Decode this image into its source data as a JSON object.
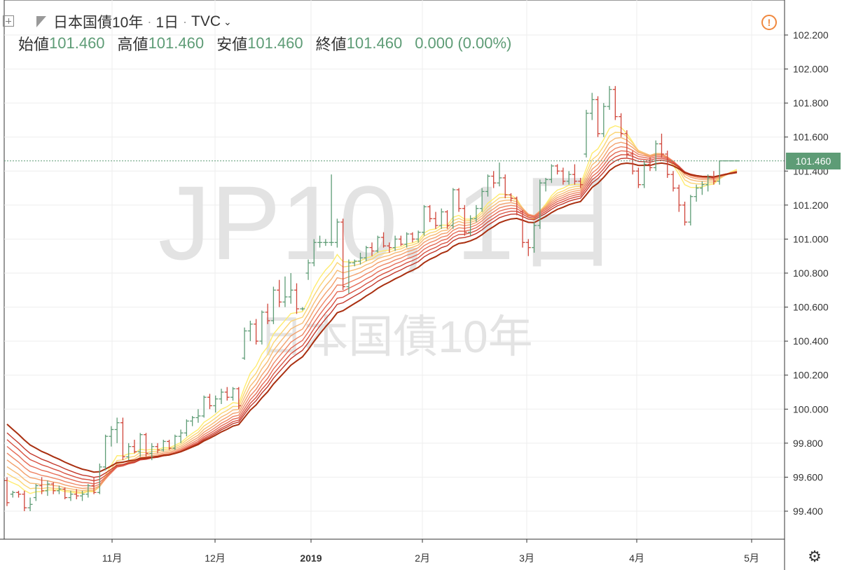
{
  "header": {
    "symbol_name": "日本国債10年",
    "interval": "1日",
    "source": "TVC",
    "open_label": "始値",
    "open_value": "101.460",
    "high_label": "高値",
    "high_value": "101.460",
    "low_label": "安値",
    "low_value": "101.460",
    "close_label": "終値",
    "close_value": "101.460",
    "change": "0.000 (0.00%)"
  },
  "watermark": {
    "line1": "JP10, 1日",
    "line2": "日本国債10年"
  },
  "last_price_label": "101.460",
  "colors": {
    "up": "#5e9c76",
    "down": "#d0453a",
    "ribbon": [
      "#ffec6e",
      "#fbd575",
      "#f7bb75",
      "#f3a06c",
      "#ee8564",
      "#e56a55",
      "#d75141",
      "#c3382b",
      "#a92f10"
    ]
  },
  "icons": [
    "expand-icon",
    "flag-icon",
    "chevron-down-icon",
    "warning-icon",
    "settings-icon"
  ],
  "chart_data": {
    "type": "ohlc",
    "y_ticks": [
      "102.200",
      "102.000",
      "101.800",
      "101.600",
      "101.400",
      "101.200",
      "101.000",
      "100.800",
      "100.600",
      "100.400",
      "100.200",
      "100.000",
      "99.800",
      "99.600",
      "99.400"
    ],
    "ylim": [
      99.25,
      102.35
    ],
    "x_ticks": [
      "11月",
      "12月",
      "2019",
      "2月",
      "3月",
      "4月",
      "5月"
    ],
    "last_price": 101.46,
    "bars": [
      [
        99.58,
        99.6,
        99.43,
        99.45
      ],
      [
        99.5,
        99.52,
        99.48,
        99.51
      ],
      [
        99.51,
        99.52,
        99.48,
        99.5
      ],
      [
        99.5,
        99.52,
        99.4,
        99.42
      ],
      [
        99.42,
        99.48,
        99.4,
        99.44
      ],
      [
        99.48,
        99.56,
        99.46,
        99.55
      ],
      [
        99.55,
        99.6,
        99.5,
        99.52
      ],
      [
        99.52,
        99.58,
        99.49,
        99.56
      ],
      [
        99.56,
        99.57,
        99.5,
        99.52
      ],
      [
        99.52,
        99.55,
        99.5,
        99.53
      ],
      [
        99.53,
        99.54,
        99.47,
        99.48
      ],
      [
        99.48,
        99.52,
        99.46,
        99.5
      ],
      [
        99.5,
        99.53,
        99.47,
        99.49
      ],
      [
        99.49,
        99.52,
        99.46,
        99.5
      ],
      [
        99.5,
        99.56,
        99.48,
        99.55
      ],
      [
        99.55,
        99.6,
        99.5,
        99.51
      ],
      [
        99.51,
        99.68,
        99.5,
        99.66
      ],
      [
        99.66,
        99.85,
        99.64,
        99.84
      ],
      [
        99.84,
        99.9,
        99.78,
        99.88
      ],
      [
        99.88,
        99.95,
        99.8,
        99.92
      ],
      [
        99.92,
        99.95,
        99.7,
        99.72
      ],
      [
        99.72,
        99.8,
        99.7,
        99.78
      ],
      [
        99.78,
        99.82,
        99.74,
        99.75
      ],
      [
        99.75,
        99.86,
        99.72,
        99.85
      ],
      [
        99.85,
        99.86,
        99.72,
        99.74
      ],
      [
        99.74,
        99.8,
        99.7,
        99.78
      ],
      [
        99.78,
        99.8,
        99.74,
        99.76
      ],
      [
        99.76,
        99.82,
        99.75,
        99.81
      ],
      [
        99.81,
        99.82,
        99.76,
        99.77
      ],
      [
        99.77,
        99.85,
        99.76,
        99.84
      ],
      [
        99.84,
        99.88,
        99.8,
        99.86
      ],
      [
        99.86,
        99.94,
        99.84,
        99.93
      ],
      [
        99.93,
        99.96,
        99.9,
        99.95
      ],
      [
        99.95,
        100.0,
        99.92,
        99.96
      ],
      [
        99.96,
        100.08,
        99.95,
        100.07
      ],
      [
        100.07,
        100.09,
        100.0,
        100.02
      ],
      [
        100.02,
        100.08,
        99.98,
        100.06
      ],
      [
        100.06,
        100.12,
        100.03,
        100.1
      ],
      [
        100.1,
        100.13,
        100.05,
        100.07
      ],
      [
        100.07,
        100.13,
        100.05,
        100.12
      ],
      [
        100.12,
        100.13,
        100.0,
        100.02
      ],
      [
        100.3,
        100.48,
        100.29,
        100.46
      ],
      [
        100.46,
        100.52,
        100.4,
        100.5
      ],
      [
        100.5,
        100.53,
        100.38,
        100.4
      ],
      [
        100.4,
        100.58,
        100.38,
        100.57
      ],
      [
        100.57,
        100.62,
        100.5,
        100.52
      ],
      [
        100.52,
        100.72,
        100.5,
        100.7
      ],
      [
        100.7,
        100.76,
        100.6,
        100.63
      ],
      [
        100.63,
        100.78,
        100.6,
        100.66
      ],
      [
        100.66,
        100.8,
        100.62,
        100.7
      ],
      [
        100.7,
        100.74,
        100.56,
        100.59
      ],
      [
        100.59,
        100.6,
        100.58,
        100.59
      ],
      [
        100.8,
        100.88,
        100.76,
        100.86
      ],
      [
        100.86,
        101.0,
        100.84,
        100.98
      ],
      [
        100.98,
        101.02,
        100.95,
        100.98
      ],
      [
        100.98,
        101.0,
        100.96,
        100.98
      ],
      [
        100.98,
        101.38,
        100.96,
        100.98
      ],
      [
        100.98,
        101.12,
        100.95,
        101.1
      ],
      [
        101.1,
        101.12,
        100.7,
        100.72
      ],
      [
        100.72,
        100.88,
        100.68,
        100.86
      ],
      [
        100.86,
        100.88,
        100.84,
        100.87
      ],
      [
        100.87,
        100.92,
        100.85,
        100.89
      ],
      [
        100.89,
        100.96,
        100.87,
        100.95
      ],
      [
        100.95,
        100.98,
        100.9,
        100.93
      ],
      [
        100.93,
        101.02,
        100.92,
        101.01
      ],
      [
        101.01,
        101.04,
        100.95,
        100.96
      ],
      [
        100.96,
        100.98,
        100.92,
        100.95
      ],
      [
        100.95,
        101.02,
        100.93,
        101.0
      ],
      [
        101.0,
        101.02,
        100.96,
        100.97
      ],
      [
        100.97,
        101.04,
        100.95,
        101.03
      ],
      [
        101.03,
        101.04,
        100.98,
        101.0
      ],
      [
        101.0,
        101.05,
        100.98,
        101.04
      ],
      [
        101.04,
        101.2,
        101.02,
        101.19
      ],
      [
        101.19,
        101.2,
        101.1,
        101.12
      ],
      [
        101.12,
        101.16,
        101.06,
        101.08
      ],
      [
        101.08,
        101.18,
        101.06,
        101.16
      ],
      [
        101.16,
        101.17,
        101.06,
        101.08
      ],
      [
        101.08,
        101.3,
        101.06,
        101.29
      ],
      [
        101.29,
        101.3,
        101.16,
        101.18
      ],
      [
        101.18,
        101.2,
        101.02,
        101.04
      ],
      [
        101.04,
        101.14,
        101.02,
        101.12
      ],
      [
        101.12,
        101.2,
        101.1,
        101.18
      ],
      [
        101.18,
        101.3,
        101.16,
        101.28
      ],
      [
        101.28,
        101.38,
        101.25,
        101.37
      ],
      [
        101.37,
        101.4,
        101.3,
        101.33
      ],
      [
        101.33,
        101.45,
        101.31,
        101.36
      ],
      [
        101.36,
        101.38,
        101.24,
        101.26
      ],
      [
        101.26,
        101.27,
        101.22,
        101.24
      ],
      [
        101.24,
        101.25,
        101.14,
        101.16
      ],
      [
        101.16,
        101.17,
        100.95,
        100.98
      ],
      [
        100.98,
        101.0,
        100.9,
        100.95
      ],
      [
        100.95,
        101.1,
        100.92,
        101.08
      ],
      [
        101.08,
        101.35,
        101.06,
        101.33
      ],
      [
        101.33,
        101.36,
        101.28,
        101.35
      ],
      [
        101.35,
        101.44,
        101.33,
        101.43
      ],
      [
        101.43,
        101.44,
        101.38,
        101.4
      ],
      [
        101.4,
        101.42,
        101.32,
        101.34
      ],
      [
        101.34,
        101.4,
        101.32,
        101.38
      ],
      [
        101.38,
        101.44,
        101.32,
        101.34
      ],
      [
        101.34,
        101.36,
        101.3,
        101.32
      ],
      [
        101.5,
        101.76,
        101.48,
        101.74
      ],
      [
        101.74,
        101.86,
        101.7,
        101.82
      ],
      [
        101.82,
        101.84,
        101.6,
        101.62
      ],
      [
        101.62,
        101.8,
        101.6,
        101.78
      ],
      [
        101.78,
        101.9,
        101.76,
        101.88
      ],
      [
        101.88,
        101.9,
        101.7,
        101.72
      ],
      [
        101.72,
        101.74,
        101.6,
        101.62
      ],
      [
        101.62,
        101.64,
        101.48,
        101.5
      ],
      [
        101.5,
        101.52,
        101.38,
        101.4
      ],
      [
        101.4,
        101.42,
        101.3,
        101.32
      ],
      [
        101.32,
        101.46,
        101.3,
        101.44
      ],
      [
        101.44,
        101.48,
        101.4,
        101.42
      ],
      [
        101.42,
        101.58,
        101.4,
        101.56
      ],
      [
        101.56,
        101.62,
        101.48,
        101.5
      ],
      [
        101.5,
        101.52,
        101.36,
        101.38
      ],
      [
        101.38,
        101.4,
        101.28,
        101.3
      ],
      [
        101.3,
        101.32,
        101.16,
        101.2
      ],
      [
        101.2,
        101.22,
        101.08,
        101.1
      ],
      [
        101.1,
        101.26,
        101.08,
        101.25
      ],
      [
        101.25,
        101.32,
        101.22,
        101.3
      ],
      [
        101.3,
        101.34,
        101.26,
        101.32
      ],
      [
        101.32,
        101.38,
        101.28,
        101.36
      ],
      [
        101.36,
        101.4,
        101.32,
        101.34
      ],
      [
        101.34,
        101.46,
        101.32,
        101.46
      ],
      [
        101.46,
        101.46,
        101.46,
        101.46
      ],
      [
        101.46,
        101.46,
        101.46,
        101.46
      ],
      [
        101.46,
        101.46,
        101.46,
        101.46
      ]
    ]
  }
}
